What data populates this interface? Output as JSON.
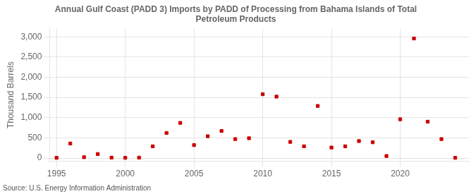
{
  "chart_data": {
    "type": "scatter",
    "title": "Annual Gulf Coast (PADD 3) Imports by PADD of Processing from Bahama Islands of Total\nPetroleum Products",
    "ylabel": "Thousand Barrels",
    "annotations": [
      "Source: U.S. Energy Information Administration"
    ],
    "x": [
      1995,
      1996,
      1997,
      1998,
      1999,
      2000,
      2001,
      2002,
      2003,
      2004,
      2005,
      2006,
      2007,
      2008,
      2009,
      2010,
      2011,
      2012,
      2013,
      2014,
      2015,
      2016,
      2017,
      2018,
      2019,
      2020,
      2021,
      2022,
      2023,
      2024
    ],
    "values": [
      5,
      360,
      20,
      100,
      10,
      5,
      10,
      290,
      620,
      870,
      320,
      540,
      670,
      470,
      490,
      1580,
      1520,
      400,
      290,
      1290,
      260,
      290,
      420,
      390,
      50,
      960,
      2960,
      900,
      470,
      5
    ],
    "color": "#cc0000",
    "marker": "square",
    "xlim": [
      1994.5,
      2025
    ],
    "xticks": [
      1995,
      2000,
      2005,
      2010,
      2015,
      2020
    ],
    "ylim": [
      -80,
      3200
    ],
    "yticks": [
      0,
      500,
      {
        "value": 1000,
        "label": "1,000"
      },
      {
        "value": 1500,
        "label": "1,500"
      },
      {
        "value": 2000,
        "label": "2,000"
      },
      {
        "value": 2500,
        "label": "2,500"
      },
      {
        "value": 3000,
        "label": "3,000"
      }
    ],
    "grid": true
  }
}
